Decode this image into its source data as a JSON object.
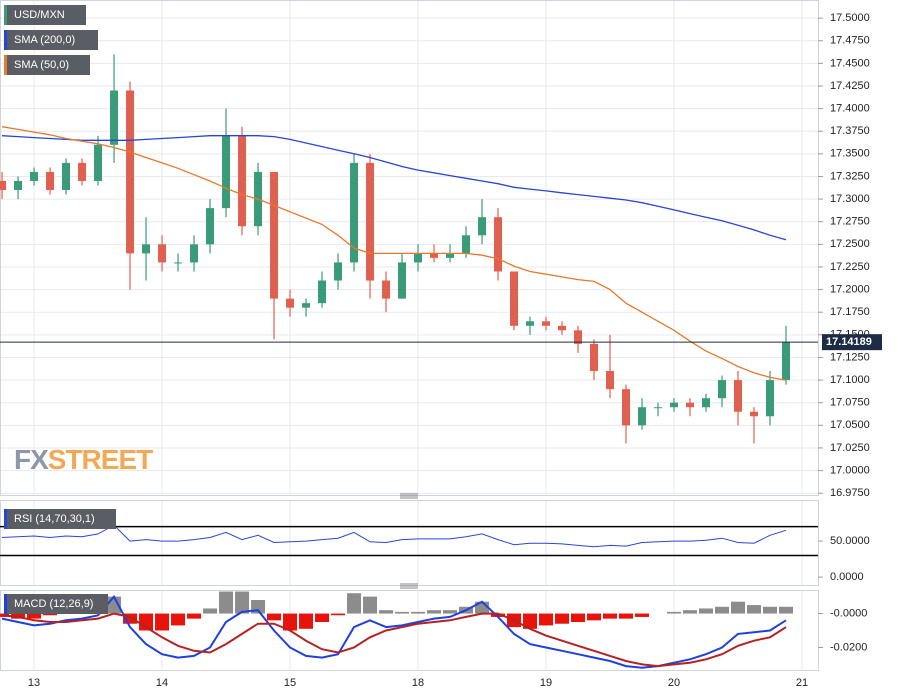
{
  "chart_data": [
    {
      "type": "candlestick",
      "name": "USD/MXN",
      "up_color": "#3a9b78",
      "down_color": "#e0604f",
      "x": [
        -0.25,
        -0.125,
        0,
        0.125,
        0.25,
        0.375,
        0.5,
        0.625,
        0.75,
        0.875,
        1,
        1.125,
        1.25,
        1.375,
        1.5,
        1.625,
        1.75,
        1.875,
        2,
        2.125,
        2.25,
        2.375,
        2.5,
        2.625,
        2.75,
        2.875,
        3,
        3.125,
        3.25,
        3.375,
        3.5,
        3.625,
        3.75,
        3.875,
        4,
        4.125,
        4.25,
        4.375,
        4.5,
        4.625,
        4.75,
        4.875,
        5,
        5.125,
        5.25,
        5.375,
        5.5,
        5.625,
        5.75,
        5.875
      ],
      "open": [
        17.32,
        17.31,
        17.32,
        17.33,
        17.31,
        17.34,
        17.32,
        17.36,
        17.42,
        17.24,
        17.25,
        17.23,
        17.23,
        17.25,
        17.29,
        17.37,
        17.27,
        17.33,
        17.19,
        17.18,
        17.185,
        17.21,
        17.23,
        17.34,
        17.21,
        17.19,
        17.23,
        17.24,
        17.235,
        17.24,
        17.26,
        17.28,
        17.22,
        17.16,
        17.165,
        17.16,
        17.155,
        17.14,
        17.11,
        17.09,
        17.05,
        17.07,
        17.07,
        17.075,
        17.07,
        17.08,
        17.1,
        17.065,
        17.06,
        17.1
      ],
      "high": [
        17.33,
        17.325,
        17.335,
        17.335,
        17.345,
        17.345,
        17.37,
        17.46,
        17.43,
        17.28,
        17.26,
        17.24,
        17.26,
        17.3,
        17.4,
        17.38,
        17.34,
        17.33,
        17.2,
        17.19,
        17.22,
        17.24,
        17.35,
        17.35,
        17.22,
        17.24,
        17.25,
        17.25,
        17.25,
        17.27,
        17.3,
        17.29,
        17.22,
        17.17,
        17.17,
        17.165,
        17.16,
        17.145,
        17.15,
        17.095,
        17.08,
        17.075,
        17.08,
        17.08,
        17.085,
        17.105,
        17.11,
        17.07,
        17.11,
        17.16
      ],
      "low": [
        17.3,
        17.3,
        17.315,
        17.305,
        17.305,
        17.315,
        17.315,
        17.34,
        17.2,
        17.21,
        17.22,
        17.22,
        17.22,
        17.24,
        17.28,
        17.26,
        17.26,
        17.145,
        17.17,
        17.17,
        17.18,
        17.2,
        17.22,
        17.19,
        17.175,
        17.19,
        17.22,
        17.23,
        17.23,
        17.235,
        17.25,
        17.21,
        17.155,
        17.15,
        17.155,
        17.15,
        17.13,
        17.1,
        17.08,
        17.03,
        17.045,
        17.06,
        17.065,
        17.06,
        17.065,
        17.07,
        17.05,
        17.03,
        17.05,
        17.095
      ],
      "close": [
        17.31,
        17.32,
        17.33,
        17.31,
        17.34,
        17.32,
        17.36,
        17.42,
        17.24,
        17.25,
        17.23,
        17.23,
        17.25,
        17.29,
        17.37,
        17.27,
        17.33,
        17.19,
        17.18,
        17.185,
        17.21,
        17.23,
        17.34,
        17.21,
        17.19,
        17.23,
        17.24,
        17.235,
        17.24,
        17.26,
        17.28,
        17.22,
        17.16,
        17.165,
        17.16,
        17.155,
        17.14,
        17.11,
        17.09,
        17.05,
        17.07,
        17.07,
        17.075,
        17.07,
        17.08,
        17.1,
        17.065,
        17.06,
        17.1,
        17.14189
      ],
      "series": [
        {
          "name": "SMA (200,0)",
          "color": "#2746d8",
          "values": [
            17.37,
            17.369,
            17.368,
            17.367,
            17.366,
            17.365,
            17.365,
            17.365,
            17.365,
            17.366,
            17.367,
            17.368,
            17.369,
            17.37,
            17.37,
            17.37,
            17.37,
            17.369,
            17.366,
            17.362,
            17.358,
            17.354,
            17.35,
            17.346,
            17.341,
            17.336,
            17.332,
            17.329,
            17.326,
            17.323,
            17.32,
            17.317,
            17.313,
            17.311,
            17.309,
            17.307,
            17.305,
            17.303,
            17.301,
            17.299,
            17.296,
            17.292,
            17.288,
            17.284,
            17.28,
            17.276,
            17.271,
            17.266,
            17.26,
            17.255
          ]
        },
        {
          "name": "SMA (50,0)",
          "color": "#e8782a",
          "values": [
            17.38,
            17.377,
            17.374,
            17.371,
            17.367,
            17.364,
            17.361,
            17.357,
            17.352,
            17.346,
            17.34,
            17.334,
            17.327,
            17.32,
            17.312,
            17.305,
            17.3,
            17.293,
            17.286,
            17.279,
            17.272,
            17.26,
            17.246,
            17.24,
            17.24,
            17.24,
            17.24,
            17.24,
            17.24,
            17.24,
            17.238,
            17.234,
            17.226,
            17.22,
            17.217,
            17.214,
            17.211,
            17.209,
            17.2,
            17.185,
            17.175,
            17.165,
            17.155,
            17.143,
            17.132,
            17.124,
            17.115,
            17.108,
            17.103,
            17.1
          ]
        }
      ],
      "last_price": 17.14189,
      "xlim": [
        -0.266,
        6.125
      ],
      "xticks": [
        {
          "value": 0,
          "label": "13"
        },
        {
          "value": 1,
          "label": "14"
        },
        {
          "value": 2,
          "label": "15"
        },
        {
          "value": 3,
          "label": "18"
        },
        {
          "value": 4,
          "label": "19"
        },
        {
          "value": 5,
          "label": "20"
        },
        {
          "value": 6,
          "label": "21"
        }
      ],
      "ylim": [
        16.973,
        17.52
      ],
      "yticks": [
        {
          "value": 16.975,
          "label": "16.9750"
        },
        {
          "value": 17,
          "label": "17.0000"
        },
        {
          "value": 17.025,
          "label": "17.0250"
        },
        {
          "value": 17.05,
          "label": "17.0500"
        },
        {
          "value": 17.075,
          "label": "17.0750"
        },
        {
          "value": 17.1,
          "label": "17.1000"
        },
        {
          "value": 17.125,
          "label": "17.1250"
        },
        {
          "value": 17.15,
          "label": "17.1500"
        },
        {
          "value": 17.175,
          "label": "17.1750"
        },
        {
          "value": 17.2,
          "label": "17.2000"
        },
        {
          "value": 17.225,
          "label": "17.2250"
        },
        {
          "value": 17.25,
          "label": "17.2500"
        },
        {
          "value": 17.275,
          "label": "17.2750"
        },
        {
          "value": 17.3,
          "label": "17.3000"
        },
        {
          "value": 17.325,
          "label": "17.3250"
        },
        {
          "value": 17.35,
          "label": "17.3500"
        },
        {
          "value": 17.375,
          "label": "17.3750"
        },
        {
          "value": 17.4,
          "label": "17.4000"
        },
        {
          "value": 17.425,
          "label": "17.4250"
        },
        {
          "value": 17.45,
          "label": "17.4500"
        },
        {
          "value": 17.475,
          "label": "17.4750"
        },
        {
          "value": 17.5,
          "label": "17.5000"
        }
      ],
      "grid": true,
      "watermark": [
        "FX",
        "STREET"
      ]
    },
    {
      "type": "line",
      "series": [
        {
          "name": "RSI (14,70,30,1)",
          "color": "#2746d8",
          "values": [
            55,
            56,
            57,
            55,
            57,
            56,
            60,
            72,
            50,
            52,
            50,
            50,
            52,
            55,
            62,
            52,
            58,
            48,
            49,
            50,
            52,
            54,
            62,
            49,
            48,
            52,
            53,
            53,
            53,
            56,
            60,
            52,
            45,
            47,
            47,
            46,
            44,
            42,
            44,
            43,
            48,
            49,
            50,
            50,
            51,
            54,
            48,
            47,
            58,
            65
          ]
        }
      ],
      "levels": [
        70,
        30
      ],
      "ylim": [
        -11,
        107
      ],
      "yticks": [
        {
          "value": 50,
          "label": "50.0000"
        },
        {
          "value": 0,
          "label": "0.0000"
        }
      ]
    },
    {
      "type": "macd",
      "title": "MACD (12,26,9)",
      "series": [
        {
          "color": "#1f3fe0",
          "values": [
            -0.003,
            -0.005,
            -0.007,
            -0.006,
            -0.004,
            -0.003,
            -0.001,
            0.01,
            -0.008,
            -0.018,
            -0.024,
            -0.026,
            -0.025,
            -0.02,
            -0.005,
            0.001,
            0.002,
            -0.01,
            -0.02,
            -0.025,
            -0.026,
            -0.024,
            -0.008,
            -0.004,
            -0.008,
            -0.007,
            -0.005,
            -0.003,
            -0.002,
            0.002,
            0.007,
            -0.002,
            -0.012,
            -0.018,
            -0.02,
            -0.022,
            -0.024,
            -0.026,
            -0.028,
            -0.031,
            -0.032,
            -0.031,
            -0.029,
            -0.027,
            -0.024,
            -0.02,
            -0.012,
            -0.011,
            -0.01,
            -0.004
          ]
        },
        {
          "color": "#b52222",
          "values": [
            -0.001,
            -0.002,
            -0.004,
            -0.005,
            -0.005,
            -0.004,
            -0.003,
            0.0,
            -0.002,
            -0.008,
            -0.014,
            -0.019,
            -0.022,
            -0.023,
            -0.018,
            -0.012,
            -0.006,
            -0.006,
            -0.01,
            -0.016,
            -0.021,
            -0.023,
            -0.02,
            -0.014,
            -0.01,
            -0.008,
            -0.006,
            -0.005,
            -0.004,
            -0.002,
            0.0,
            0.0,
            -0.004,
            -0.009,
            -0.013,
            -0.016,
            -0.019,
            -0.022,
            -0.025,
            -0.028,
            -0.03,
            -0.031,
            -0.03,
            -0.029,
            -0.027,
            -0.024,
            -0.019,
            -0.016,
            -0.014,
            -0.008
          ]
        }
      ],
      "histogram": {
        "up_color": "#8c8c8c",
        "down_color": "#e8140c",
        "values": [
          -0.002,
          -0.003,
          -0.003,
          -0.001,
          0.001,
          0.001,
          0.002,
          0.01,
          -0.006,
          -0.01,
          -0.01,
          -0.007,
          -0.003,
          0.003,
          0.013,
          0.013,
          0.008,
          -0.004,
          -0.01,
          -0.009,
          -0.005,
          -0.001,
          0.012,
          0.01,
          0.002,
          0.001,
          0.001,
          0.002,
          0.002,
          0.004,
          0.007,
          -0.002,
          -0.008,
          -0.009,
          -0.007,
          -0.006,
          -0.005,
          -0.004,
          -0.003,
          -0.003,
          -0.002,
          0.0,
          0.001,
          0.002,
          0.003,
          0.004,
          0.007,
          0.005,
          0.004,
          0.004
        ]
      },
      "ylim": [
        -0.0333,
        0.0139
      ],
      "yticks": [
        {
          "value": 0,
          "label": "-0.0000"
        },
        {
          "value": -0.02,
          "label": "-0.0200"
        }
      ]
    }
  ]
}
